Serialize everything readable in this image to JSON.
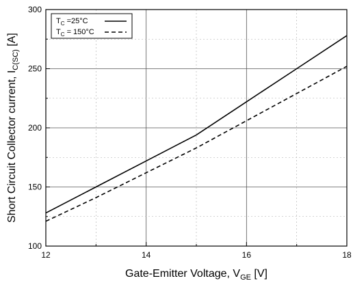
{
  "chart_data": {
    "type": "line",
    "xlabel": "Gate-Emitter Voltage, V",
    "xlabel_sub": "GE",
    "xlabel_unit": " [V]",
    "ylabel": "Short Circuit Collector current, I",
    "ylabel_sub": "C(SC)",
    "ylabel_unit": " [A]",
    "xlim": [
      12,
      18
    ],
    "ylim": [
      100,
      300
    ],
    "x_ticks": [
      12,
      14,
      16,
      18
    ],
    "y_ticks": [
      100,
      150,
      200,
      250,
      300
    ],
    "x_minor_ticks": [
      13,
      15,
      17
    ],
    "y_minor_ticks": [
      125,
      175,
      225,
      275
    ],
    "grid": true,
    "legend_position": "top-left",
    "series": [
      {
        "name": "T",
        "name_sub": "C",
        "name_suffix": " =25°C",
        "style": "solid",
        "x": [
          12,
          13,
          14,
          15,
          16,
          17,
          18
        ],
        "y": [
          128,
          150,
          172,
          194,
          222,
          250,
          278
        ]
      },
      {
        "name": "T",
        "name_sub": "C",
        "name_suffix": " = 150°C",
        "style": "dashed",
        "x": [
          12,
          13,
          14,
          15,
          16,
          17,
          18
        ],
        "y": [
          121,
          141,
          162,
          183,
          206,
          229,
          252
        ]
      }
    ]
  }
}
